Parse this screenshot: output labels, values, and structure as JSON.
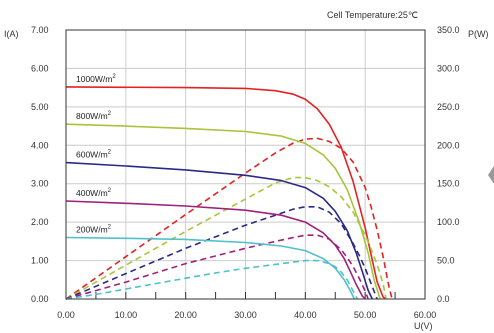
{
  "header": {
    "cell_temperature": "Cell Temperature:25℃",
    "left_axis_unit": "I(A)",
    "right_axis_unit": "P(W)",
    "x_axis_unit": "U(V)"
  },
  "chart_data": {
    "type": "line",
    "title": "",
    "grid": true,
    "x_ticks": [
      "0.00",
      "10.00",
      "20.00",
      "30.00",
      "40.00",
      "50.00",
      "60.00"
    ],
    "y_left_ticks": [
      "0.00",
      "1.00",
      "2.00",
      "3.00",
      "4.00",
      "5.00",
      "6.00",
      "7.00"
    ],
    "y_right_ticks": [
      "0.0",
      "50.0",
      "100.0",
      "150.0",
      "200.0",
      "250.0",
      "300.0",
      "350.0"
    ],
    "xlim": [
      0,
      60
    ],
    "ylim_left": [
      0,
      7
    ],
    "ylim_right": [
      0,
      350
    ],
    "series": [
      {
        "name": "1000W/m",
        "name_sup": "2",
        "color": "#e32222",
        "current": {
          "x": [
            0,
            20,
            30,
            35,
            38,
            40,
            42,
            44,
            46,
            48,
            50,
            51,
            52,
            53,
            53.5
          ],
          "y": [
            5.52,
            5.5,
            5.48,
            5.42,
            5.33,
            5.2,
            4.95,
            4.55,
            3.95,
            3.05,
            1.85,
            1.15,
            0.45,
            0.05,
            0
          ]
        },
        "power": {
          "x": [
            0,
            10,
            20,
            30,
            35,
            38,
            40,
            42,
            44,
            46,
            48,
            50,
            51,
            52,
            53,
            54,
            54.5
          ],
          "y": [
            0,
            55,
            110,
            164,
            190,
            203,
            208,
            209,
            205,
            196,
            178,
            145,
            120,
            90,
            55,
            15,
            0
          ]
        }
      },
      {
        "name": "800W/m",
        "name_sup": "2",
        "color": "#a8c43a",
        "current": {
          "x": [
            0,
            10,
            20,
            30,
            36,
            40,
            43,
            45,
            47,
            49,
            50.5,
            51.5,
            52.5
          ],
          "y": [
            4.55,
            4.5,
            4.44,
            4.36,
            4.24,
            4.05,
            3.75,
            3.4,
            2.85,
            2.0,
            1.2,
            0.5,
            0
          ]
        },
        "power": {
          "x": [
            0,
            10,
            20,
            30,
            35,
            38,
            40,
            42,
            44,
            46,
            48,
            50,
            51,
            52,
            53,
            53.5
          ],
          "y": [
            0,
            44,
            88,
            130,
            151,
            158,
            158,
            154,
            146,
            133,
            113,
            83,
            65,
            45,
            20,
            0
          ]
        }
      },
      {
        "name": "600W/m",
        "name_sup": "2",
        "color": "#2a2a86",
        "current": {
          "x": [
            0,
            10,
            20,
            30,
            36,
            40,
            43,
            45,
            47,
            48.5,
            49.5,
            50.5,
            51.2
          ],
          "y": [
            3.55,
            3.46,
            3.36,
            3.22,
            3.08,
            2.9,
            2.62,
            2.28,
            1.78,
            1.2,
            0.72,
            0.22,
            0
          ]
        },
        "power": {
          "x": [
            0,
            10,
            20,
            30,
            35,
            38,
            40,
            42,
            44,
            46,
            48,
            49,
            50,
            51,
            51.5,
            52
          ],
          "y": [
            0,
            33,
            66,
            96,
            109,
            117,
            120,
            120,
            113,
            98,
            72,
            57,
            40,
            20,
            10,
            0
          ]
        }
      },
      {
        "name": "400W/m",
        "name_sup": "2",
        "color": "#a0207c",
        "current": {
          "x": [
            0,
            10,
            20,
            30,
            36,
            40,
            43,
            45,
            46.5,
            47.5,
            48.5,
            49.5,
            50
          ],
          "y": [
            2.55,
            2.49,
            2.42,
            2.31,
            2.18,
            2.0,
            1.72,
            1.4,
            1.05,
            0.72,
            0.38,
            0.08,
            0
          ]
        },
        "power": {
          "x": [
            0,
            10,
            20,
            30,
            35,
            38,
            40,
            42,
            44,
            46,
            47,
            48,
            49,
            50,
            50.5
          ],
          "y": [
            0,
            22,
            46,
            66,
            75,
            80,
            83,
            83,
            78,
            64,
            54,
            42,
            27,
            10,
            0
          ]
        }
      },
      {
        "name": "200W/m",
        "name_sup": "2",
        "color": "#4fc0cc",
        "current": {
          "x": [
            0,
            10,
            20,
            30,
            36,
            40,
            43,
            45,
            46.5,
            47.5,
            48.2
          ],
          "y": [
            1.6,
            1.58,
            1.55,
            1.47,
            1.38,
            1.26,
            1.05,
            0.8,
            0.5,
            0.22,
            0
          ]
        },
        "power": {
          "x": [
            0,
            5,
            10,
            15,
            20,
            25,
            30,
            35,
            38,
            40,
            42,
            44,
            45,
            46,
            47,
            48,
            48.7
          ],
          "y": [
            0,
            6,
            13,
            20,
            27,
            34,
            40,
            45,
            48,
            50,
            50,
            46,
            42,
            35,
            25,
            10,
            0
          ]
        }
      }
    ]
  }
}
